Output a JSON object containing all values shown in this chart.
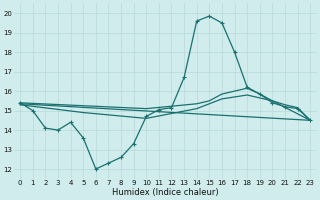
{
  "xlabel": "Humidex (Indice chaleur)",
  "xlim": [
    -0.5,
    23.5
  ],
  "ylim": [
    11.5,
    20.5
  ],
  "yticks": [
    12,
    13,
    14,
    15,
    16,
    17,
    18,
    19,
    20
  ],
  "xticks": [
    0,
    1,
    2,
    3,
    4,
    5,
    6,
    7,
    8,
    9,
    10,
    11,
    12,
    13,
    14,
    15,
    16,
    17,
    18,
    19,
    20,
    21,
    22,
    23
  ],
  "bg_color": "#d0ecec",
  "line_color": "#1a7070",
  "grid_color": "#b8d8d8",
  "lines": [
    {
      "x": [
        0,
        1,
        2,
        3,
        4,
        5,
        6,
        7,
        8,
        9,
        10,
        11,
        12,
        13,
        14,
        15,
        16,
        17,
        18,
        19,
        20,
        21,
        22,
        23
      ],
      "y": [
        15.4,
        15.0,
        14.1,
        14.0,
        14.4,
        13.6,
        12.0,
        12.3,
        12.6,
        13.3,
        14.7,
        15.05,
        15.15,
        16.7,
        19.6,
        19.85,
        19.5,
        18.0,
        16.2,
        15.85,
        15.4,
        15.2,
        15.1,
        14.5
      ],
      "marker": true
    },
    {
      "x": [
        0,
        10,
        14,
        15,
        16,
        17,
        18,
        19,
        20,
        21,
        22,
        23
      ],
      "y": [
        15.4,
        15.1,
        15.35,
        15.5,
        15.85,
        16.0,
        16.15,
        15.85,
        15.5,
        15.3,
        15.15,
        14.5
      ],
      "marker": false
    },
    {
      "x": [
        0,
        23
      ],
      "y": [
        15.35,
        14.5
      ],
      "marker": false
    },
    {
      "x": [
        0,
        5,
        10,
        14,
        16,
        18,
        20,
        23
      ],
      "y": [
        15.3,
        14.9,
        14.6,
        15.1,
        15.6,
        15.8,
        15.5,
        14.5
      ],
      "marker": false
    }
  ]
}
